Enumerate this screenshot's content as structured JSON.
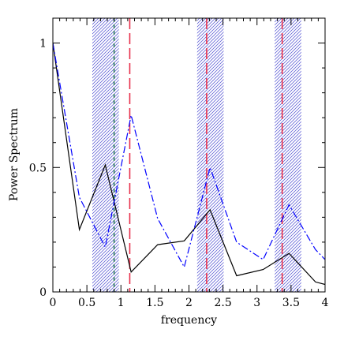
{
  "chart_data": {
    "type": "line",
    "title": "",
    "xlabel": "frequency",
    "ylabel": "Power Spectrum",
    "xlim": [
      0,
      4
    ],
    "ylim": [
      0,
      1.1
    ],
    "grid": false,
    "x_major_ticks": [
      0,
      0.5,
      1,
      1.5,
      2,
      2.5,
      3,
      3.5,
      4
    ],
    "x_tick_labels": [
      "0",
      "0.5",
      "1",
      "1.5",
      "2",
      "2.5",
      "3",
      "3.5",
      "4"
    ],
    "x_minor_step": 0.1,
    "y_major_ticks": [
      0,
      0.5,
      1
    ],
    "y_tick_labels": [
      "0",
      "0.5",
      "1"
    ],
    "y_minor_step": 0.1,
    "series": [
      {
        "style": "solid",
        "color": "#000000",
        "points": [
          [
            0,
            1.0
          ],
          [
            0.39,
            0.25
          ],
          [
            0.77,
            0.51
          ],
          [
            1.15,
            0.08
          ],
          [
            1.54,
            0.19
          ],
          [
            1.93,
            0.205
          ],
          [
            2.31,
            0.33
          ],
          [
            2.7,
            0.065
          ],
          [
            3.09,
            0.09
          ],
          [
            3.47,
            0.155
          ],
          [
            3.86,
            0.04
          ],
          [
            4.0,
            0.03
          ]
        ]
      },
      {
        "style": "dash-dot",
        "color": "#0000ff",
        "points": [
          [
            0,
            1.0
          ],
          [
            0.39,
            0.38
          ],
          [
            0.77,
            0.18
          ],
          [
            1.15,
            0.71
          ],
          [
            1.54,
            0.295
          ],
          [
            1.93,
            0.1
          ],
          [
            2.31,
            0.5
          ],
          [
            2.7,
            0.2
          ],
          [
            3.09,
            0.13
          ],
          [
            3.47,
            0.35
          ],
          [
            3.86,
            0.17
          ],
          [
            4.0,
            0.13
          ]
        ]
      }
    ],
    "vertical_lines": [
      {
        "x": 0.9,
        "color": "#2e7d5b",
        "style": "dashed"
      },
      {
        "x": 1.13,
        "color": "#e8304a",
        "style": "long-dash"
      },
      {
        "x": 2.26,
        "color": "#e8304a",
        "style": "long-dash"
      },
      {
        "x": 3.37,
        "color": "#e8304a",
        "style": "long-dash"
      }
    ],
    "shaded_bands": [
      {
        "x0": 0.58,
        "x1": 0.97,
        "color": "#4040c8"
      },
      {
        "x0": 2.12,
        "x1": 2.51,
        "color": "#4040c8"
      },
      {
        "x0": 3.26,
        "x1": 3.65,
        "color": "#4040c8"
      }
    ]
  }
}
